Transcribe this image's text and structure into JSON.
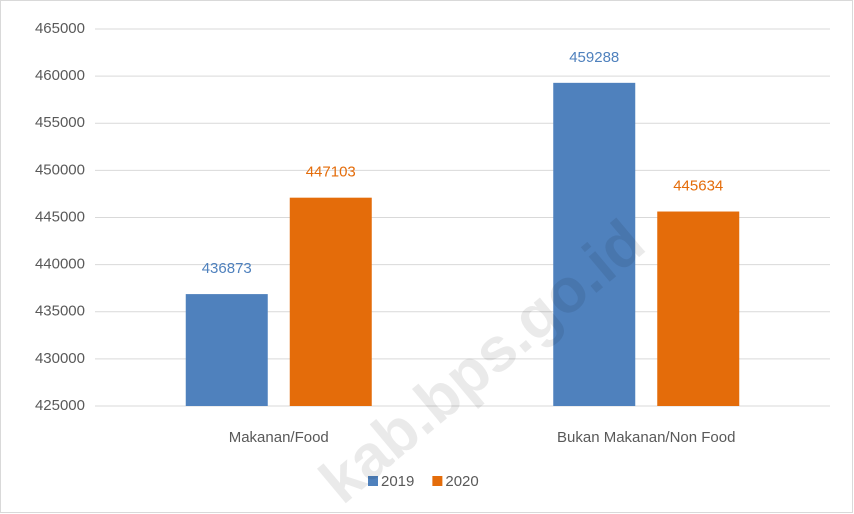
{
  "chart_data": {
    "type": "bar",
    "categories": [
      "Makanan/Food",
      "Bukan Makanan/Non Food"
    ],
    "series": [
      {
        "name": "2019",
        "color": "#4f81bd",
        "values": [
          436873,
          459288
        ]
      },
      {
        "name": "2020",
        "color": "#e46c0a",
        "values": [
          447103,
          445634
        ]
      }
    ],
    "ylim": [
      425000,
      465000
    ],
    "yticks": [
      425000,
      430000,
      435000,
      440000,
      445000,
      450000,
      455000,
      460000,
      465000
    ],
    "grid": true,
    "legend": "bottom",
    "watermark": "kab.bps.go.id"
  }
}
